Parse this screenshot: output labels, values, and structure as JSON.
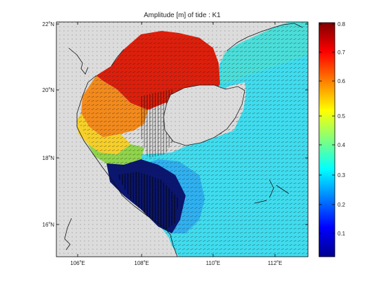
{
  "title": "Amplitude [m] of tide : K1",
  "map": {
    "x_ticks": [
      {
        "deg": "106",
        "suffix": "E"
      },
      {
        "deg": "108",
        "suffix": "E"
      },
      {
        "deg": "110",
        "suffix": "E"
      },
      {
        "deg": "112",
        "suffix": "E"
      }
    ],
    "y_ticks": [
      {
        "deg": "22",
        "suffix": "N"
      },
      {
        "deg": "20",
        "suffix": "N"
      },
      {
        "deg": "18",
        "suffix": "N"
      },
      {
        "deg": "16",
        "suffix": "N"
      }
    ]
  },
  "colorbar": {
    "ticks": [
      "0.8",
      "0.7",
      "0.6",
      "0.5",
      "0.4",
      "0.3",
      "0.2",
      "0.1"
    ],
    "range": [
      0,
      0.8
    ],
    "colormap": "jet"
  },
  "colors": {
    "land": "#dcdcdc",
    "high": "#dc1e0a",
    "mid": "#f5c830",
    "sea": "#3cdcf0",
    "low": "#000000"
  }
}
